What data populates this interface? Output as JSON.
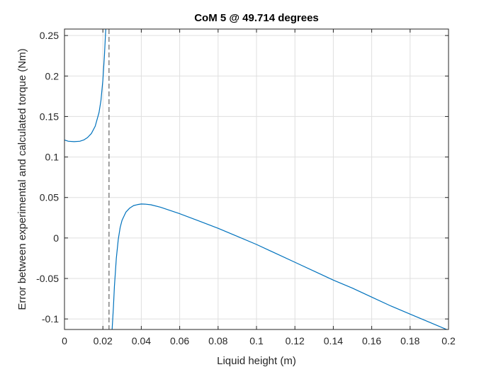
{
  "chart_data": {
    "type": "line",
    "title": "CoM 5 @ 49.714 degrees",
    "xlabel": "Liquid height (m)",
    "ylabel": "Error between experimental and calculated torque (Nm)",
    "xlim": [
      0,
      0.2
    ],
    "ylim": [
      -0.113,
      0.258
    ],
    "xticks": [
      0,
      0.02,
      0.04,
      0.06,
      0.08,
      0.1,
      0.12,
      0.14,
      0.16,
      0.18,
      0.2
    ],
    "xtick_labels": [
      "0",
      "0.02",
      "0.04",
      "0.06",
      "0.08",
      "0.1",
      "0.12",
      "0.14",
      "0.16",
      "0.18",
      "0.2"
    ],
    "yticks": [
      -0.1,
      -0.05,
      0,
      0.05,
      0.1,
      0.15,
      0.2,
      0.25
    ],
    "ytick_labels": [
      "-0.1",
      "-0.05",
      "0",
      "0.05",
      "0.1",
      "0.15",
      "0.2",
      "0.25"
    ],
    "grid": true,
    "asymptote_x": 0.0232,
    "series": [
      {
        "color": "#0072bd",
        "segments": [
          [
            [
              0,
              0.121
            ],
            [
              0.002,
              0.1195
            ],
            [
              0.005,
              0.119
            ],
            [
              0.008,
              0.1195
            ],
            [
              0.01,
              0.121
            ],
            [
              0.012,
              0.124
            ],
            [
              0.014,
              0.129
            ],
            [
              0.016,
              0.138
            ],
            [
              0.018,
              0.155
            ],
            [
              0.019,
              0.17
            ],
            [
              0.02,
              0.195
            ],
            [
              0.0208,
              0.225
            ],
            [
              0.0215,
              0.258
            ]
          ],
          [
            [
              0.0248,
              -0.113
            ],
            [
              0.0255,
              -0.085
            ],
            [
              0.026,
              -0.06
            ],
            [
              0.027,
              -0.025
            ],
            [
              0.028,
              -0.002
            ],
            [
              0.029,
              0.013
            ],
            [
              0.03,
              0.022
            ],
            [
              0.032,
              0.032
            ],
            [
              0.034,
              0.037
            ],
            [
              0.036,
              0.04
            ],
            [
              0.038,
              0.0412
            ],
            [
              0.04,
              0.042
            ],
            [
              0.042,
              0.0418
            ],
            [
              0.045,
              0.041
            ],
            [
              0.05,
              0.038
            ],
            [
              0.06,
              0.03
            ],
            [
              0.07,
              0.021
            ],
            [
              0.08,
              0.012
            ],
            [
              0.09,
              0.002
            ],
            [
              0.1,
              -0.008
            ],
            [
              0.11,
              -0.019
            ],
            [
              0.12,
              -0.03
            ],
            [
              0.13,
              -0.041
            ],
            [
              0.14,
              -0.052
            ],
            [
              0.15,
              -0.062
            ],
            [
              0.16,
              -0.073
            ],
            [
              0.17,
              -0.084
            ],
            [
              0.18,
              -0.094
            ],
            [
              0.19,
              -0.104
            ],
            [
              0.2,
              -0.114
            ]
          ]
        ]
      }
    ]
  }
}
